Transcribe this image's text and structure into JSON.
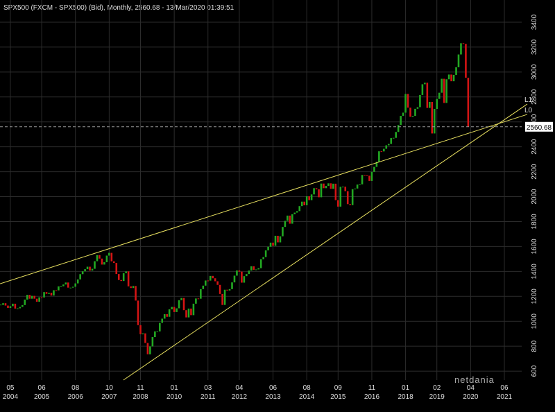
{
  "chart_data": {
    "type": "candlestick",
    "title": "SPX500 (FXCM - SPX500) (Bid), Monthly, 2560.68 - 13/Mar/2020 01:39:51",
    "watermark": "netdania",
    "up_color": "#22a822",
    "down_color": "#d41414",
    "grid": true,
    "xlim": [
      -0.3,
      216.2
    ],
    "ylim": [
      528,
      3578
    ],
    "yticks": [
      600,
      800,
      1000,
      1200,
      1400,
      1600,
      1800,
      2000,
      2200,
      2400,
      2600,
      2800,
      3000,
      3200,
      3400
    ],
    "xticks": [
      {
        "value": 4,
        "label": "05",
        "year": "2004"
      },
      {
        "value": 17,
        "label": "06",
        "year": "2005"
      },
      {
        "value": 31,
        "label": "08",
        "year": "2006"
      },
      {
        "value": 45,
        "label": "10",
        "year": "2007"
      },
      {
        "value": 58,
        "label": "11",
        "year": "2008"
      },
      {
        "value": 72,
        "label": "01",
        "year": "2010"
      },
      {
        "value": 86,
        "label": "03",
        "year": "2011"
      },
      {
        "value": 99,
        "label": "04",
        "year": "2012"
      },
      {
        "value": 113,
        "label": "06",
        "year": "2013"
      },
      {
        "value": 127,
        "label": "08",
        "year": "2014"
      },
      {
        "value": 140,
        "label": "09",
        "year": "2015"
      },
      {
        "value": 154,
        "label": "11",
        "year": "2016"
      },
      {
        "value": 168,
        "label": "01",
        "year": "2018"
      },
      {
        "value": 181,
        "label": "02",
        "year": "2019"
      },
      {
        "value": 195,
        "label": "04",
        "year": "2020"
      },
      {
        "value": 209,
        "label": "06",
        "year": "2021"
      }
    ],
    "values": [
      1131,
      1145,
      1126,
      1107,
      1121,
      1141,
      1102,
      1104,
      1115,
      1130,
      1174,
      1212,
      1181,
      1204,
      1181,
      1157,
      1192,
      1191,
      1234,
      1220,
      1229,
      1207,
      1249,
      1248,
      1280,
      1281,
      1295,
      1311,
      1270,
      1270,
      1277,
      1304,
      1336,
      1378,
      1401,
      1418,
      1438,
      1407,
      1421,
      1482,
      1531,
      1503,
      1455,
      1474,
      1527,
      1549,
      1481,
      1468,
      1379,
      1331,
      1323,
      1386,
      1400,
      1280,
      1267,
      1283,
      1166,
      969,
      896,
      903,
      826,
      735,
      798,
      873,
      919,
      919,
      987,
      1021,
      1057,
      1036,
      1096,
      1115,
      1074,
      1104,
      1169,
      1187,
      1089,
      1031,
      1102,
      1049,
      1141,
      1183,
      1181,
      1258,
      1286,
      1327,
      1326,
      1364,
      1345,
      1321,
      1292,
      1219,
      1131,
      1253,
      1247,
      1258,
      1312,
      1366,
      1408,
      1398,
      1310,
      1362,
      1379,
      1407,
      1441,
      1412,
      1416,
      1426,
      1498,
      1515,
      1569,
      1598,
      1631,
      1606,
      1686,
      1633,
      1682,
      1757,
      1806,
      1848,
      1783,
      1859,
      1872,
      1884,
      1924,
      1960,
      1931,
      2003,
      1972,
      2018,
      2068,
      2059,
      1995,
      2105,
      2068,
      2086,
      2107,
      2063,
      2104,
      1972,
      1920,
      2079,
      2080,
      2044,
      1940,
      1932,
      2060,
      2065,
      2097,
      2099,
      2174,
      2171,
      2168,
      2126,
      2199,
      2239,
      2279,
      2364,
      2363,
      2384,
      2412,
      2423,
      2470,
      2472,
      2519,
      2575,
      2648,
      2674,
      2824,
      2714,
      2641,
      2648,
      2705,
      2718,
      2816,
      2902,
      2914,
      2712,
      2760,
      2507,
      2704,
      2784,
      2834,
      2946,
      2752,
      2942,
      2980,
      2926,
      2977,
      3038,
      3141,
      3231,
      3226,
      2954,
      2560.68
    ],
    "last_price": {
      "value": 2560.68,
      "label": "2560.68"
    },
    "trendlines": [
      {
        "name": "L0",
        "color": "#e8e060",
        "x": [
          -0.3,
          218.5
        ],
        "values": [
          1301,
          2660
        ]
      },
      {
        "name": "L1",
        "color": "#e8e060",
        "x": [
          50.9,
          218.5
        ],
        "values": [
          528,
          2743
        ]
      }
    ]
  }
}
